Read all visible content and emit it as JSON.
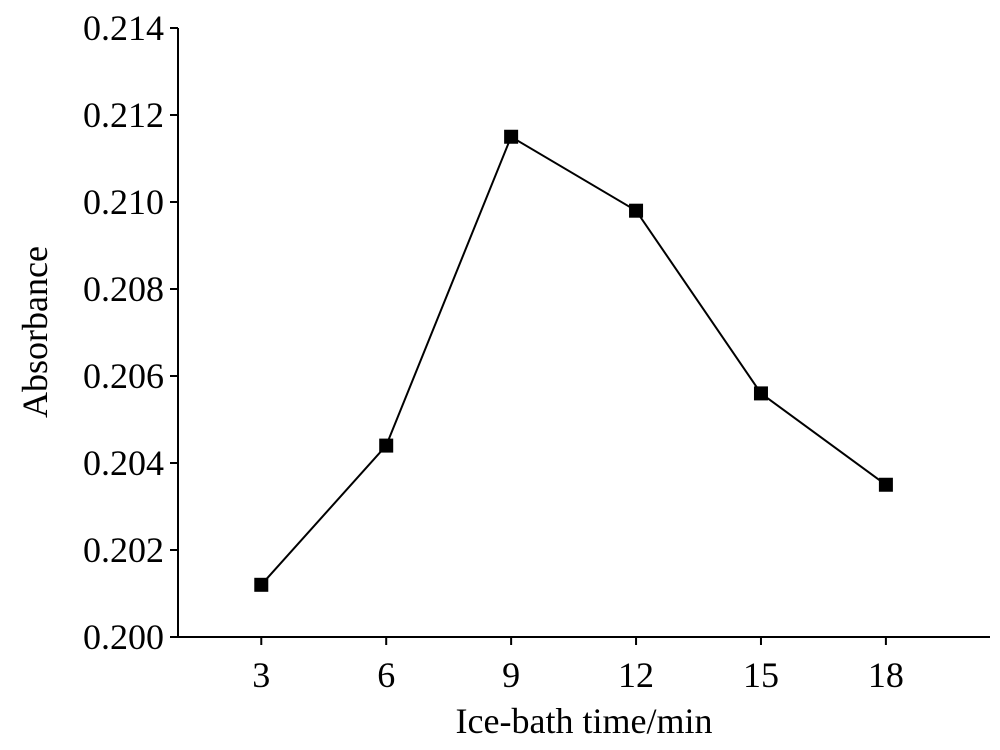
{
  "chart_data": {
    "type": "line",
    "xlabel": "Ice-bath time/min",
    "ylabel": "Absorbance",
    "x": [
      3,
      6,
      9,
      12,
      15,
      18
    ],
    "series": [
      {
        "values": [
          0.2012,
          0.2044,
          0.2115,
          0.2098,
          0.2056,
          0.2035
        ]
      }
    ],
    "xticks": [
      "3",
      "6",
      "9",
      "12",
      "15",
      "18"
    ],
    "yticks": [
      "0.200",
      "0.202",
      "0.204",
      "0.206",
      "0.208",
      "0.210",
      "0.212",
      "0.214"
    ],
    "xlim": [
      1,
      20.5
    ],
    "ylim": [
      0.2,
      0.214
    ],
    "marker": "square",
    "grid": false,
    "colors": {
      "line": "#000000",
      "marker": "#000000"
    }
  }
}
